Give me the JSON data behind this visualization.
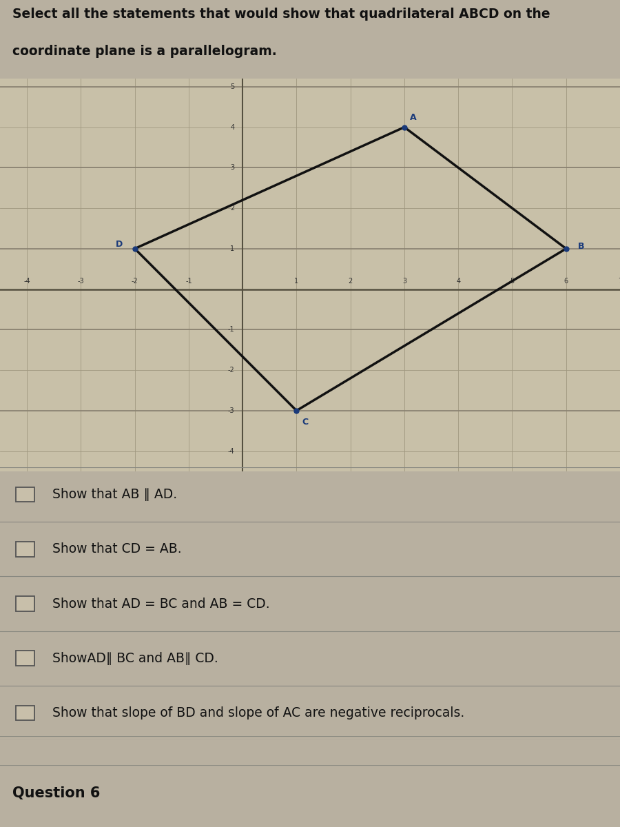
{
  "title_line1": "Select all the statements that would show that quadrilateral ABCD on the",
  "title_line2": "coordinate plane is a parallelogram.",
  "bg_color": "#b8b0a0",
  "grid_bg": "#c8c0a8",
  "question_label": "Question 6",
  "points": {
    "A": [
      3,
      4
    ],
    "B": [
      6,
      1
    ],
    "C": [
      1,
      -3
    ],
    "D": [
      -2,
      1
    ]
  },
  "xlim": [
    -4.5,
    7.0
  ],
  "ylim": [
    -4.5,
    5.2
  ],
  "options": [
    "Show that AB ∥ AD.",
    "Show that CD = AB.",
    "Show that AD = BC and AB = CD.",
    "ShowAD∥ BC and AB∥ CD.",
    "Show that slope of BD and slope of AC are negative reciprocals."
  ],
  "text_color": "#111111",
  "line_color": "#111111",
  "point_color": "#1a3a7a",
  "grid_line_color": "#a09880",
  "grid_line_color2": "#888070",
  "axis_line_color": "#555040",
  "separator_color": "#888880"
}
